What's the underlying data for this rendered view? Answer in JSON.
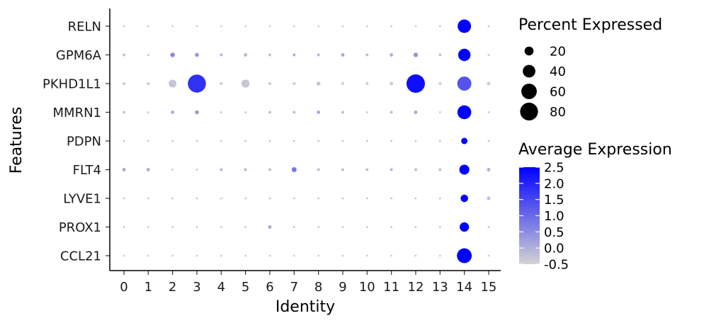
{
  "chart_data": {
    "type": "dot",
    "xlabel": "Identity",
    "ylabel": "Features",
    "x_categories": [
      "0",
      "1",
      "2",
      "3",
      "4",
      "5",
      "6",
      "7",
      "8",
      "9",
      "10",
      "11",
      "12",
      "13",
      "14",
      "15"
    ],
    "features": [
      "RELN",
      "GPM6A",
      "PKHD1L1",
      "MMRN1",
      "PDPN",
      "FLT4",
      "LYVE1",
      "PROX1",
      "CCL21"
    ],
    "color_low": "#d3d3d3",
    "color_high": "#0000ff",
    "points": [
      {
        "feature": "RELN",
        "cluster": "0",
        "pct": 1,
        "avg": -0.4
      },
      {
        "feature": "RELN",
        "cluster": "1",
        "pct": 1,
        "avg": -0.4
      },
      {
        "feature": "RELN",
        "cluster": "2",
        "pct": 1,
        "avg": -0.4
      },
      {
        "feature": "RELN",
        "cluster": "3",
        "pct": 1,
        "avg": -0.4
      },
      {
        "feature": "RELN",
        "cluster": "4",
        "pct": 1,
        "avg": -0.4
      },
      {
        "feature": "RELN",
        "cluster": "5",
        "pct": 1,
        "avg": -0.4
      },
      {
        "feature": "RELN",
        "cluster": "6",
        "pct": 1,
        "avg": -0.4
      },
      {
        "feature": "RELN",
        "cluster": "7",
        "pct": 1,
        "avg": -0.4
      },
      {
        "feature": "RELN",
        "cluster": "8",
        "pct": 1,
        "avg": -0.4
      },
      {
        "feature": "RELN",
        "cluster": "9",
        "pct": 1,
        "avg": -0.4
      },
      {
        "feature": "RELN",
        "cluster": "10",
        "pct": 1,
        "avg": -0.4
      },
      {
        "feature": "RELN",
        "cluster": "11",
        "pct": 1,
        "avg": -0.4
      },
      {
        "feature": "RELN",
        "cluster": "12",
        "pct": 1,
        "avg": -0.4
      },
      {
        "feature": "RELN",
        "cluster": "13",
        "pct": 1,
        "avg": -0.4
      },
      {
        "feature": "RELN",
        "cluster": "14",
        "pct": 45,
        "avg": 2.6
      },
      {
        "feature": "RELN",
        "cluster": "15",
        "pct": 1,
        "avg": -0.4
      },
      {
        "feature": "GPM6A",
        "cluster": "0",
        "pct": 2,
        "avg": -0.3
      },
      {
        "feature": "GPM6A",
        "cluster": "1",
        "pct": 1,
        "avg": -0.3
      },
      {
        "feature": "GPM6A",
        "cluster": "2",
        "pct": 5,
        "avg": 0.6
      },
      {
        "feature": "GPM6A",
        "cluster": "3",
        "pct": 4,
        "avg": 0.4
      },
      {
        "feature": "GPM6A",
        "cluster": "4",
        "pct": 2,
        "avg": -0.1
      },
      {
        "feature": "GPM6A",
        "cluster": "5",
        "pct": 3,
        "avg": -0.1
      },
      {
        "feature": "GPM6A",
        "cluster": "6",
        "pct": 2,
        "avg": -0.2
      },
      {
        "feature": "GPM6A",
        "cluster": "7",
        "pct": 2,
        "avg": 0.0
      },
      {
        "feature": "GPM6A",
        "cluster": "8",
        "pct": 2,
        "avg": -0.1
      },
      {
        "feature": "GPM6A",
        "cluster": "9",
        "pct": 3,
        "avg": 0.1
      },
      {
        "feature": "GPM6A",
        "cluster": "10",
        "pct": 2,
        "avg": -0.2
      },
      {
        "feature": "GPM6A",
        "cluster": "11",
        "pct": 3,
        "avg": 0.0
      },
      {
        "feature": "GPM6A",
        "cluster": "12",
        "pct": 5,
        "avg": 0.4
      },
      {
        "feature": "GPM6A",
        "cluster": "13",
        "pct": 2,
        "avg": -0.3
      },
      {
        "feature": "GPM6A",
        "cluster": "14",
        "pct": 38,
        "avg": 2.6
      },
      {
        "feature": "GPM6A",
        "cluster": "15",
        "pct": 1,
        "avg": -0.3
      },
      {
        "feature": "PKHD1L1",
        "cluster": "0",
        "pct": 2,
        "avg": -0.4
      },
      {
        "feature": "PKHD1L1",
        "cluster": "1",
        "pct": 2,
        "avg": -0.4
      },
      {
        "feature": "PKHD1L1",
        "cluster": "2",
        "pct": 15,
        "avg": -0.3
      },
      {
        "feature": "PKHD1L1",
        "cluster": "3",
        "pct": 82,
        "avg": 1.8
      },
      {
        "feature": "PKHD1L1",
        "cluster": "4",
        "pct": 2,
        "avg": -0.4
      },
      {
        "feature": "PKHD1L1",
        "cluster": "5",
        "pct": 16,
        "avg": -0.3
      },
      {
        "feature": "PKHD1L1",
        "cluster": "6",
        "pct": 2,
        "avg": -0.4
      },
      {
        "feature": "PKHD1L1",
        "cluster": "7",
        "pct": 2,
        "avg": -0.4
      },
      {
        "feature": "PKHD1L1",
        "cluster": "8",
        "pct": 4,
        "avg": -0.3
      },
      {
        "feature": "PKHD1L1",
        "cluster": "9",
        "pct": 2,
        "avg": -0.4
      },
      {
        "feature": "PKHD1L1",
        "cluster": "10",
        "pct": 2,
        "avg": -0.4
      },
      {
        "feature": "PKHD1L1",
        "cluster": "11",
        "pct": 3,
        "avg": -0.4
      },
      {
        "feature": "PKHD1L1",
        "cluster": "12",
        "pct": 85,
        "avg": 2.3
      },
      {
        "feature": "PKHD1L1",
        "cluster": "13",
        "pct": 2,
        "avg": -0.4
      },
      {
        "feature": "PKHD1L1",
        "cluster": "14",
        "pct": 50,
        "avg": 1.3
      },
      {
        "feature": "PKHD1L1",
        "cluster": "15",
        "pct": 3,
        "avg": -0.4
      },
      {
        "feature": "MMRN1",
        "cluster": "0",
        "pct": 2,
        "avg": -0.3
      },
      {
        "feature": "MMRN1",
        "cluster": "1",
        "pct": 1,
        "avg": -0.3
      },
      {
        "feature": "MMRN1",
        "cluster": "2",
        "pct": 3,
        "avg": 0.0
      },
      {
        "feature": "MMRN1",
        "cluster": "3",
        "pct": 4,
        "avg": 0.3
      },
      {
        "feature": "MMRN1",
        "cluster": "4",
        "pct": 1,
        "avg": -0.3
      },
      {
        "feature": "MMRN1",
        "cluster": "5",
        "pct": 1,
        "avg": -0.3
      },
      {
        "feature": "MMRN1",
        "cluster": "6",
        "pct": 2,
        "avg": -0.2
      },
      {
        "feature": "MMRN1",
        "cluster": "7",
        "pct": 2,
        "avg": -0.2
      },
      {
        "feature": "MMRN1",
        "cluster": "8",
        "pct": 3,
        "avg": 0.1
      },
      {
        "feature": "MMRN1",
        "cluster": "9",
        "pct": 2,
        "avg": -0.2
      },
      {
        "feature": "MMRN1",
        "cluster": "10",
        "pct": 1,
        "avg": -0.3
      },
      {
        "feature": "MMRN1",
        "cluster": "11",
        "pct": 2,
        "avg": -0.2
      },
      {
        "feature": "MMRN1",
        "cluster": "12",
        "pct": 3,
        "avg": 0.1
      },
      {
        "feature": "MMRN1",
        "cluster": "13",
        "pct": 1,
        "avg": -0.3
      },
      {
        "feature": "MMRN1",
        "cluster": "14",
        "pct": 48,
        "avg": 2.6
      },
      {
        "feature": "MMRN1",
        "cluster": "15",
        "pct": 1,
        "avg": -0.3
      },
      {
        "feature": "PDPN",
        "cluster": "0",
        "pct": 1,
        "avg": -0.3
      },
      {
        "feature": "PDPN",
        "cluster": "1",
        "pct": 1,
        "avg": -0.3
      },
      {
        "feature": "PDPN",
        "cluster": "2",
        "pct": 1,
        "avg": -0.3
      },
      {
        "feature": "PDPN",
        "cluster": "3",
        "pct": 1,
        "avg": -0.3
      },
      {
        "feature": "PDPN",
        "cluster": "4",
        "pct": 1,
        "avg": -0.3
      },
      {
        "feature": "PDPN",
        "cluster": "5",
        "pct": 1,
        "avg": -0.3
      },
      {
        "feature": "PDPN",
        "cluster": "6",
        "pct": 1,
        "avg": -0.3
      },
      {
        "feature": "PDPN",
        "cluster": "7",
        "pct": 1,
        "avg": -0.3
      },
      {
        "feature": "PDPN",
        "cluster": "8",
        "pct": 1,
        "avg": -0.3
      },
      {
        "feature": "PDPN",
        "cluster": "9",
        "pct": 1,
        "avg": -0.3
      },
      {
        "feature": "PDPN",
        "cluster": "10",
        "pct": 1,
        "avg": -0.3
      },
      {
        "feature": "PDPN",
        "cluster": "11",
        "pct": 1,
        "avg": -0.3
      },
      {
        "feature": "PDPN",
        "cluster": "12",
        "pct": 1,
        "avg": -0.3
      },
      {
        "feature": "PDPN",
        "cluster": "13",
        "pct": 1,
        "avg": -0.3
      },
      {
        "feature": "PDPN",
        "cluster": "14",
        "pct": 10,
        "avg": 2.6
      },
      {
        "feature": "PDPN",
        "cluster": "15",
        "pct": 1,
        "avg": -0.3
      },
      {
        "feature": "FLT4",
        "cluster": "0",
        "pct": 3,
        "avg": 0.1
      },
      {
        "feature": "FLT4",
        "cluster": "1",
        "pct": 3,
        "avg": 0.0
      },
      {
        "feature": "FLT4",
        "cluster": "2",
        "pct": 1,
        "avg": -0.3
      },
      {
        "feature": "FLT4",
        "cluster": "3",
        "pct": 1,
        "avg": -0.3
      },
      {
        "feature": "FLT4",
        "cluster": "4",
        "pct": 2,
        "avg": -0.1
      },
      {
        "feature": "FLT4",
        "cluster": "5",
        "pct": 2,
        "avg": -0.1
      },
      {
        "feature": "FLT4",
        "cluster": "6",
        "pct": 2,
        "avg": -0.2
      },
      {
        "feature": "FLT4",
        "cluster": "7",
        "pct": 6,
        "avg": 0.8
      },
      {
        "feature": "FLT4",
        "cluster": "8",
        "pct": 2,
        "avg": -0.2
      },
      {
        "feature": "FLT4",
        "cluster": "9",
        "pct": 2,
        "avg": -0.2
      },
      {
        "feature": "FLT4",
        "cluster": "10",
        "pct": 2,
        "avg": -0.2
      },
      {
        "feature": "FLT4",
        "cluster": "11",
        "pct": 2,
        "avg": -0.1
      },
      {
        "feature": "FLT4",
        "cluster": "12",
        "pct": 2,
        "avg": -0.2
      },
      {
        "feature": "FLT4",
        "cluster": "13",
        "pct": 2,
        "avg": -0.2
      },
      {
        "feature": "FLT4",
        "cluster": "14",
        "pct": 25,
        "avg": 2.5
      },
      {
        "feature": "FLT4",
        "cluster": "15",
        "pct": 3,
        "avg": 0.0
      },
      {
        "feature": "LYVE1",
        "cluster": "0",
        "pct": 1,
        "avg": -0.3
      },
      {
        "feature": "LYVE1",
        "cluster": "1",
        "pct": 1,
        "avg": -0.3
      },
      {
        "feature": "LYVE1",
        "cluster": "2",
        "pct": 1,
        "avg": -0.3
      },
      {
        "feature": "LYVE1",
        "cluster": "3",
        "pct": 1,
        "avg": -0.3
      },
      {
        "feature": "LYVE1",
        "cluster": "4",
        "pct": 1,
        "avg": -0.3
      },
      {
        "feature": "LYVE1",
        "cluster": "5",
        "pct": 1,
        "avg": -0.3
      },
      {
        "feature": "LYVE1",
        "cluster": "6",
        "pct": 1,
        "avg": -0.3
      },
      {
        "feature": "LYVE1",
        "cluster": "7",
        "pct": 1,
        "avg": -0.3
      },
      {
        "feature": "LYVE1",
        "cluster": "8",
        "pct": 1,
        "avg": -0.3
      },
      {
        "feature": "LYVE1",
        "cluster": "9",
        "pct": 1,
        "avg": -0.3
      },
      {
        "feature": "LYVE1",
        "cluster": "10",
        "pct": 1,
        "avg": -0.3
      },
      {
        "feature": "LYVE1",
        "cluster": "11",
        "pct": 1,
        "avg": -0.3
      },
      {
        "feature": "LYVE1",
        "cluster": "12",
        "pct": 1,
        "avg": -0.3
      },
      {
        "feature": "LYVE1",
        "cluster": "13",
        "pct": 1,
        "avg": -0.3
      },
      {
        "feature": "LYVE1",
        "cluster": "14",
        "pct": 14,
        "avg": 2.6
      },
      {
        "feature": "LYVE1",
        "cluster": "15",
        "pct": 3,
        "avg": -0.2
      },
      {
        "feature": "PROX1",
        "cluster": "0",
        "pct": 1,
        "avg": -0.3
      },
      {
        "feature": "PROX1",
        "cluster": "1",
        "pct": 1,
        "avg": -0.3
      },
      {
        "feature": "PROX1",
        "cluster": "2",
        "pct": 1,
        "avg": -0.3
      },
      {
        "feature": "PROX1",
        "cluster": "3",
        "pct": 1,
        "avg": -0.3
      },
      {
        "feature": "PROX1",
        "cluster": "4",
        "pct": 1,
        "avg": -0.3
      },
      {
        "feature": "PROX1",
        "cluster": "5",
        "pct": 1,
        "avg": -0.3
      },
      {
        "feature": "PROX1",
        "cluster": "6",
        "pct": 3,
        "avg": 0.1
      },
      {
        "feature": "PROX1",
        "cluster": "7",
        "pct": 1,
        "avg": -0.3
      },
      {
        "feature": "PROX1",
        "cluster": "8",
        "pct": 1,
        "avg": -0.3
      },
      {
        "feature": "PROX1",
        "cluster": "9",
        "pct": 1,
        "avg": -0.3
      },
      {
        "feature": "PROX1",
        "cluster": "10",
        "pct": 1,
        "avg": -0.3
      },
      {
        "feature": "PROX1",
        "cluster": "11",
        "pct": 1,
        "avg": -0.3
      },
      {
        "feature": "PROX1",
        "cluster": "12",
        "pct": 1,
        "avg": -0.3
      },
      {
        "feature": "PROX1",
        "cluster": "13",
        "pct": 1,
        "avg": -0.3
      },
      {
        "feature": "PROX1",
        "cluster": "14",
        "pct": 22,
        "avg": 2.6
      },
      {
        "feature": "PROX1",
        "cluster": "15",
        "pct": 1,
        "avg": -0.3
      },
      {
        "feature": "CCL21",
        "cluster": "0",
        "pct": 1,
        "avg": -0.4
      },
      {
        "feature": "CCL21",
        "cluster": "1",
        "pct": 1,
        "avg": -0.4
      },
      {
        "feature": "CCL21",
        "cluster": "2",
        "pct": 1,
        "avg": -0.4
      },
      {
        "feature": "CCL21",
        "cluster": "3",
        "pct": 1,
        "avg": -0.4
      },
      {
        "feature": "CCL21",
        "cluster": "4",
        "pct": 1,
        "avg": -0.4
      },
      {
        "feature": "CCL21",
        "cluster": "5",
        "pct": 1,
        "avg": -0.4
      },
      {
        "feature": "CCL21",
        "cluster": "6",
        "pct": 1,
        "avg": -0.4
      },
      {
        "feature": "CCL21",
        "cluster": "7",
        "pct": 1,
        "avg": -0.4
      },
      {
        "feature": "CCL21",
        "cluster": "8",
        "pct": 1,
        "avg": -0.4
      },
      {
        "feature": "CCL21",
        "cluster": "9",
        "pct": 1,
        "avg": -0.4
      },
      {
        "feature": "CCL21",
        "cluster": "10",
        "pct": 1,
        "avg": -0.4
      },
      {
        "feature": "CCL21",
        "cluster": "11",
        "pct": 1,
        "avg": -0.4
      },
      {
        "feature": "CCL21",
        "cluster": "12",
        "pct": 1,
        "avg": -0.4
      },
      {
        "feature": "CCL21",
        "cluster": "13",
        "pct": 1,
        "avg": -0.4
      },
      {
        "feature": "CCL21",
        "cluster": "14",
        "pct": 55,
        "avg": 2.6
      },
      {
        "feature": "CCL21",
        "cluster": "15",
        "pct": 1,
        "avg": -0.4
      }
    ],
    "size_legend": {
      "title": "Percent Expressed",
      "values": [
        20,
        40,
        60,
        80
      ],
      "labels": [
        "20",
        "40",
        "60",
        "80"
      ]
    },
    "color_legend": {
      "title": "Average Expression",
      "range": [
        -0.5,
        2.5
      ],
      "ticks": [
        2.5,
        2.0,
        1.5,
        1.0,
        0.5,
        0.0,
        -0.5
      ],
      "labels": [
        "2.5",
        "2.0",
        "1.5",
        "1.0",
        "0.5",
        "0.0",
        "-0.5"
      ]
    }
  }
}
